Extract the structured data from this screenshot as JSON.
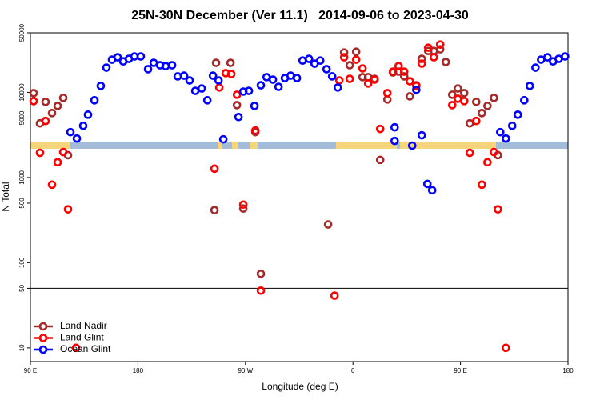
{
  "chart_data": {
    "type": "scatter",
    "title": "25N-30N December (Ver 11.1)   2014-09-06 to 2023-04-30",
    "x_label": "Longitude (deg E)",
    "y_label": "N Total",
    "log_y": true,
    "xlim": [
      90,
      540
    ],
    "ylim": [
      6.9,
      50000
    ],
    "xticks": [
      {
        "value": 90,
        "label": "90 E"
      },
      {
        "value": 180,
        "label": "180"
      },
      {
        "value": 270,
        "label": "90 W"
      },
      {
        "value": 360,
        "label": "0"
      },
      {
        "value": 450,
        "label": "90 E"
      },
      {
        "value": 540,
        "label": "180"
      }
    ],
    "yticks": [
      10,
      50,
      100,
      500,
      1000,
      5000,
      10000,
      50000
    ],
    "hline": 50,
    "legend": "bottom-left",
    "series": [
      {
        "name": "Land Nadir",
        "color": "#a52a2a",
        "x": [
          92.7,
          98,
          102.7,
          108.1,
          112.8,
          117.5,
          121.5,
          245.4,
          257.5,
          262.9,
          244.1,
          268.2,
          278.3,
          282.9,
          339.2,
          352.6,
          357.3,
          362.7,
          368,
          372.7,
          378.1,
          382.8,
          388.8,
          393.5,
          398.2,
          402.9,
          407.6,
          413,
          417.6,
          423,
          427.7,
          433,
          437.7,
          443.1,
          447.8,
          453.1,
          457.8,
          463.2,
          467.9,
          472.6,
          478,
          481.3
        ],
        "values": [
          9790,
          4320,
          7730,
          5710,
          6930,
          8610,
          1830,
          22200,
          22200,
          7080,
          414,
          432,
          3410,
          74,
          281,
          29300,
          20800,
          30000,
          15100,
          15100,
          14400,
          1610,
          8250,
          17100,
          17500,
          15400,
          8980,
          12100,
          24700,
          30600,
          30600,
          32000,
          22700,
          9380,
          11100,
          9790,
          4320,
          7730,
          5710,
          6930,
          8610,
          1830
        ]
      },
      {
        "name": "Land Glint",
        "color": "#ff0000",
        "x": [
          92.7,
          98,
          102.7,
          108.1,
          112.8,
          117.5,
          121.5,
          128.2,
          244.1,
          248.1,
          253.5,
          258.2,
          262.9,
          268.2,
          278.3,
          282.9,
          344.6,
          348.6,
          352.6,
          357.3,
          362.7,
          368,
          372.7,
          378.1,
          382.8,
          388.8,
          393.5,
          398.2,
          402.9,
          407.6,
          413,
          417.6,
          423,
          427.7,
          433,
          443.1,
          447.8,
          453.1,
          457.8,
          463.2,
          467.9,
          472.6,
          478,
          481.3,
          488
        ],
        "values": [
          7890,
          1950,
          4610,
          824,
          1510,
          1990,
          423,
          10,
          1270,
          11400,
          16800,
          16400,
          9380,
          481,
          3560,
          47,
          41,
          13800,
          25800,
          14400,
          24200,
          19100,
          12700,
          14100,
          3720,
          9790,
          17500,
          20300,
          17500,
          13500,
          11900,
          21700,
          33400,
          25800,
          36400,
          7080,
          8410,
          7890,
          1950,
          4610,
          824,
          1510,
          1990,
          423,
          10
        ]
      },
      {
        "name": "Ocean Glint",
        "color": "#0000ff",
        "x": [
          123.5,
          128.9,
          134.2,
          138.2,
          143.6,
          148.9,
          153.6,
          158.3,
          163,
          167.7,
          172.4,
          177.1,
          182.4,
          188.5,
          193.2,
          198.5,
          203.2,
          208.6,
          213.3,
          218.6,
          223.3,
          228,
          233.4,
          238.1,
          242.8,
          247.5,
          251.5,
          264.2,
          268.2,
          272.9,
          277.6,
          282.9,
          287.7,
          293,
          297.7,
          303,
          307.8,
          313.1,
          317.8,
          323.2,
          327.9,
          332.6,
          337.9,
          342.6,
          347.3,
          394.9,
          394.9,
          409.6,
          413,
          417.6,
          422.3,
          426.3,
          483.3,
          488,
          493.3,
          498,
          503.4,
          508,
          512.8,
          517.5,
          522.8,
          527.5,
          532.2,
          537.6
        ],
        "values": [
          3410,
          2870,
          4050,
          5470,
          8070,
          11900,
          19500,
          24200,
          25800,
          23100,
          24700,
          26400,
          26400,
          18700,
          22200,
          20800,
          20300,
          20800,
          15400,
          15700,
          13800,
          10400,
          11100,
          8070,
          15700,
          13800,
          2810,
          5130,
          10200,
          10400,
          6930,
          12100,
          15100,
          14100,
          11600,
          14700,
          15700,
          14700,
          23600,
          24700,
          21700,
          23600,
          18700,
          15400,
          11400,
          3880,
          2690,
          2370,
          10700,
          3130,
          841,
          709,
          3410,
          2870,
          4050,
          5470,
          8070,
          11900,
          19500,
          24200,
          25800,
          23100,
          24700,
          26400
        ]
      }
    ]
  }
}
